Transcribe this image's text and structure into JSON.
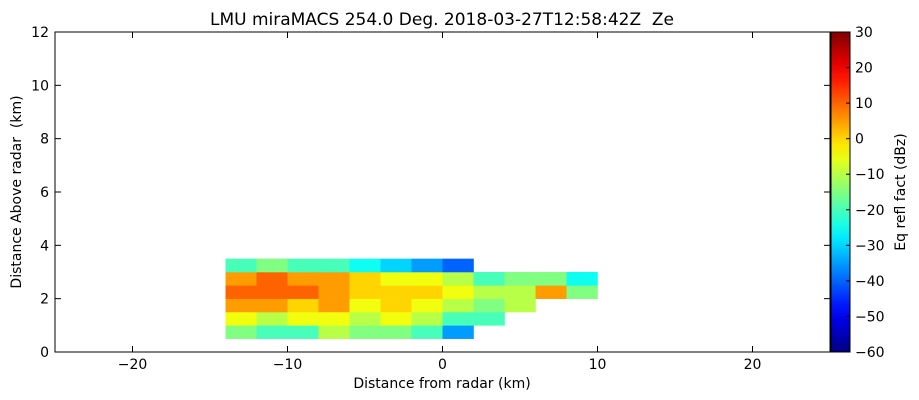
{
  "chart_data": {
    "type": "heatmap",
    "title": "LMU miraMACS 254.0 Deg. 2018-03-27T12:58:42Z  Ze",
    "x_label": "Distance from radar (km)",
    "y_label": "Distance Above radar  (km)",
    "colorbar_label": "Eq refl fact (dBz)",
    "colormap": "jet",
    "xlim": [
      -25,
      25
    ],
    "ylim": [
      0,
      12
    ],
    "xticks": [
      {
        "value": -20,
        "label": "−20"
      },
      {
        "value": -10,
        "label": "−10"
      },
      0,
      10,
      20
    ],
    "yticks": [
      0,
      2,
      4,
      6,
      8,
      10,
      12
    ],
    "clim": [
      -60,
      30
    ],
    "cticks": [
      {
        "value": -60,
        "label": "−60"
      },
      {
        "value": -50,
        "label": "−50"
      },
      {
        "value": -40,
        "label": "−40"
      },
      {
        "value": -30,
        "label": "−30"
      },
      {
        "value": -20,
        "label": "−20"
      },
      {
        "value": -10,
        "label": "−10"
      },
      0,
      10,
      20,
      30
    ],
    "x_edges": [
      -14,
      -12,
      -10,
      -8,
      -6,
      -4,
      -2,
      0,
      2,
      4,
      6,
      8,
      10,
      12
    ],
    "y_edges": [
      0.5,
      1,
      1.5,
      2,
      2.5,
      3,
      3.5
    ],
    "values": [
      [
        -15,
        -20,
        -20,
        -10,
        -15,
        -15,
        -20,
        -35,
        null,
        null,
        null,
        null,
        null
      ],
      [
        -5,
        -10,
        -5,
        -5,
        -10,
        -5,
        -10,
        -20,
        -20,
        null,
        null,
        null,
        null
      ],
      [
        5,
        5,
        0,
        5,
        -5,
        0,
        -5,
        -10,
        -15,
        -10,
        null,
        null,
        null
      ],
      [
        10,
        10,
        10,
        5,
        0,
        0,
        0,
        -5,
        -10,
        -10,
        5,
        -15,
        null
      ],
      [
        5,
        10,
        5,
        5,
        0,
        -5,
        -5,
        -10,
        -20,
        -15,
        -15,
        -25,
        null
      ],
      [
        -20,
        -15,
        -20,
        -20,
        -25,
        -30,
        -35,
        -40,
        null,
        null,
        null,
        null,
        null
      ]
    ]
  }
}
